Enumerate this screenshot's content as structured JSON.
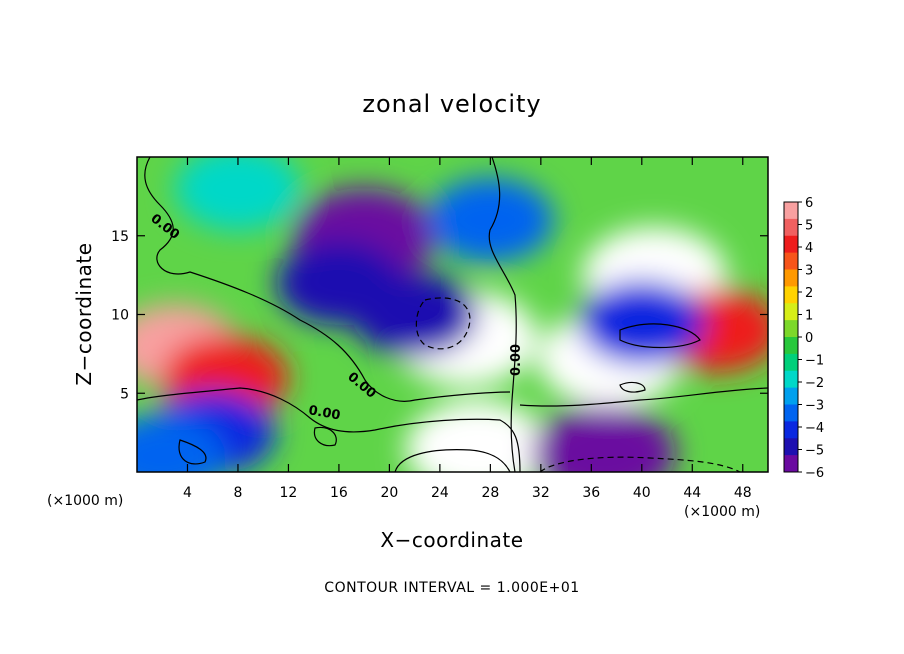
{
  "chart_data": {
    "type": "heatmap",
    "title": "zonal velocity",
    "xlabel": "X−coordinate",
    "ylabel": "Z−coordinate",
    "x_unit_label": "(×1000 m)",
    "y_unit_label": "(×1000 m)",
    "footer": "CONTOUR INTERVAL = 1.000E+01",
    "xlim": [
      0,
      50
    ],
    "ylim": [
      0,
      20
    ],
    "x_ticks": [
      4,
      8,
      12,
      16,
      20,
      24,
      28,
      32,
      36,
      40,
      44,
      48
    ],
    "y_ticks": [
      5,
      10,
      15
    ],
    "colorbar": {
      "min": -6,
      "max": 6,
      "tick_labels": [
        "6",
        "5",
        "4",
        "3",
        "2",
        "1",
        "0",
        "−1",
        "−2",
        "−3",
        "−4",
        "−5",
        "−6"
      ],
      "colors": [
        "#f8a0a0",
        "#f06060",
        "#ee1c1c",
        "#f7541a",
        "#ff9900",
        "#ffd200",
        "#d6ee18",
        "#7cd82a",
        "#28c83c",
        "#00d07a",
        "#00d8c8",
        "#00a0ee",
        "#0064f0",
        "#0a28e0",
        "#1e10b0",
        "#6a0aa0"
      ]
    },
    "contour_labels": [
      "0.00",
      "0.00",
      "0.00",
      "0.00"
    ],
    "features": [
      {
        "x": 26,
        "z": 8.5,
        "u": 9
      },
      {
        "x": 41,
        "z": 12.5,
        "u": 8
      },
      {
        "x": 37.5,
        "z": 7.2,
        "u": 8
      },
      {
        "x": 27,
        "z": 1.5,
        "u": 7
      },
      {
        "x": 37,
        "z": 1.2,
        "u": -8
      },
      {
        "x": 3,
        "z": 8,
        "u": 6
      },
      {
        "x": 7,
        "z": 6,
        "u": 4.5
      },
      {
        "x": 46,
        "z": 9,
        "u": 4
      },
      {
        "x": 18,
        "z": 15,
        "u": -7
      },
      {
        "x": 16,
        "z": 12,
        "u": -4.5
      },
      {
        "x": 22,
        "z": 10,
        "u": -5
      },
      {
        "x": 28,
        "z": 16,
        "u": -3
      },
      {
        "x": 8,
        "z": 18,
        "u": -1.5
      },
      {
        "x": 6,
        "z": 2.5,
        "u": -4
      },
      {
        "x": 2,
        "z": 1,
        "u": -3
      },
      {
        "x": 40,
        "z": 9.5,
        "u": -4
      }
    ]
  }
}
